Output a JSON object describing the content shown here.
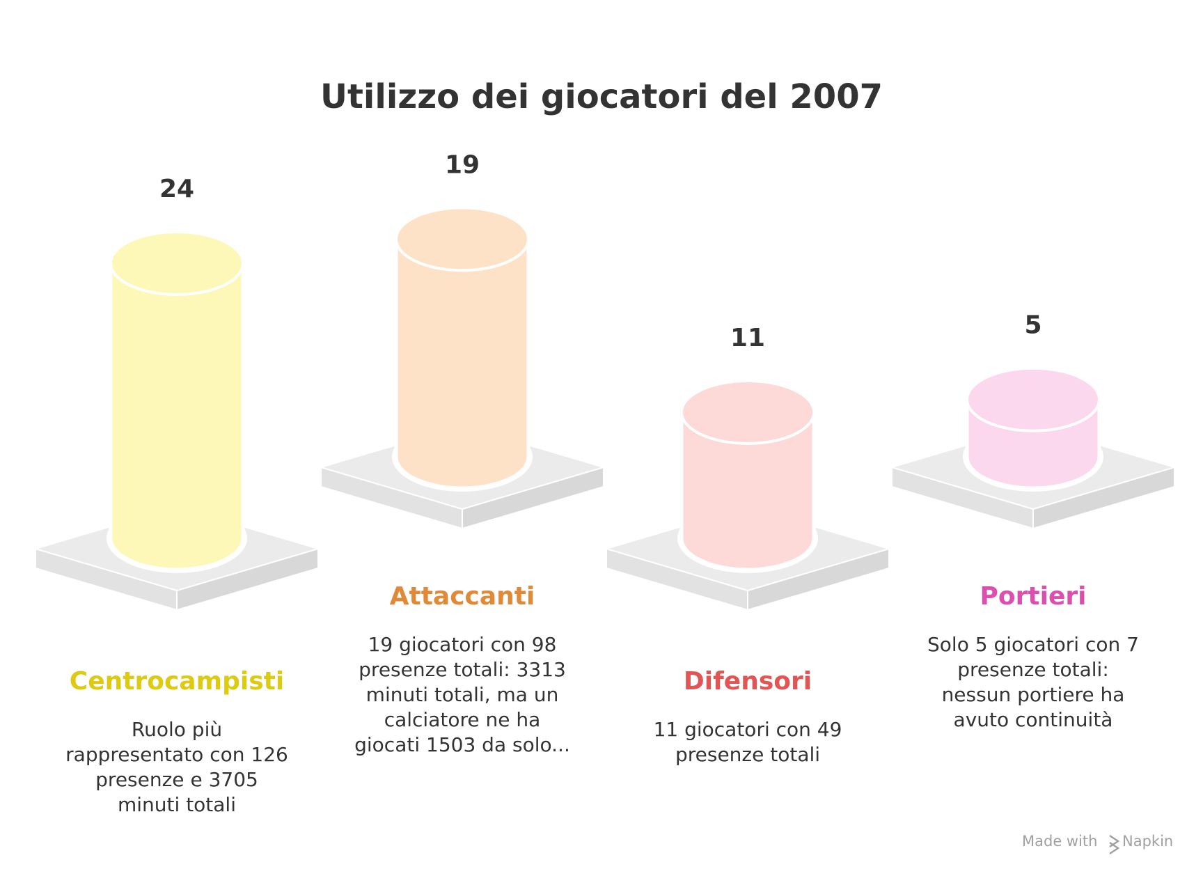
{
  "chart_data": {
    "type": "bar",
    "title": "Utilizzo dei giocatori del 2007",
    "categories": [
      "Centrocampisti",
      "Attaccanti",
      "Difensori",
      "Portieri"
    ],
    "values": [
      24,
      19,
      11,
      5
    ],
    "value_labels": [
      "24",
      "19",
      "11",
      "5"
    ],
    "descriptions": [
      [
        "Ruolo più",
        "rappresentato con 126",
        "presenze e 3705",
        "minuti totali"
      ],
      [
        "19 giocatori con 98",
        "presenze totali: 3313",
        "minuti totali, ma un",
        "calciatore ne ha",
        "giocati 1503 da solo..."
      ],
      [
        "11 giocatori con 49",
        "presenze totali"
      ],
      [
        "Solo 5 giocatori con 7",
        "presenze totali:",
        "nessun portiere ha",
        "avuto continuità"
      ]
    ],
    "colors": {
      "fill": [
        "#fef8b8",
        "#fde2c8",
        "#fdd9d8",
        "#fcd8ee"
      ],
      "label": [
        "#ddca12",
        "#e08a38",
        "#e25555",
        "#dd4faf"
      ]
    },
    "xlabel": "",
    "ylabel": "",
    "ylim": [
      0,
      24
    ]
  },
  "watermark": {
    "prefix": "Made with",
    "brand": "Napkin"
  }
}
